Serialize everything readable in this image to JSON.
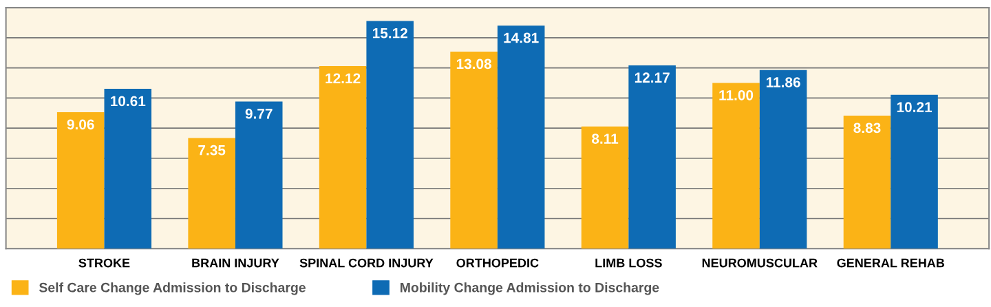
{
  "chart_data": {
    "type": "bar",
    "categories": [
      "STROKE",
      "BRAIN INJURY",
      "SPINAL CORD INJURY",
      "ORTHOPEDIC",
      "LIMB LOSS",
      "NEUROMUSCULAR",
      "GENERAL REHAB"
    ],
    "series": [
      {
        "name": "Self Care Change Admission to Discharge",
        "color": "#fbb316",
        "values": [
          9.06,
          7.35,
          12.12,
          13.08,
          8.11,
          11.0,
          8.83
        ],
        "value_labels": [
          "9.06",
          "7.35",
          "12.12",
          "13.08",
          "8.11",
          "11.00",
          "8.83"
        ]
      },
      {
        "name": "Mobility Change Admission to Discharge",
        "color": "#0e6bb4",
        "values": [
          10.61,
          9.77,
          15.12,
          14.81,
          12.17,
          11.86,
          10.21
        ],
        "value_labels": [
          "10.61",
          "9.77",
          "15.12",
          "14.81",
          "12.17",
          "11.86",
          "10.21"
        ]
      }
    ],
    "ylim": [
      0,
      16
    ],
    "yticks": [
      {
        "value": 0,
        "label": null
      },
      {
        "value": 2,
        "label": null
      },
      {
        "value": 4,
        "label": null
      },
      {
        "value": 6,
        "label": null
      },
      {
        "value": 8,
        "label": null
      },
      {
        "value": 10,
        "label": null
      },
      {
        "value": 12,
        "label": null
      },
      {
        "value": 14,
        "label": null
      },
      {
        "value": 16,
        "label": null
      }
    ],
    "tick_labels": "x",
    "grid": "y",
    "legend": "bottom left"
  }
}
